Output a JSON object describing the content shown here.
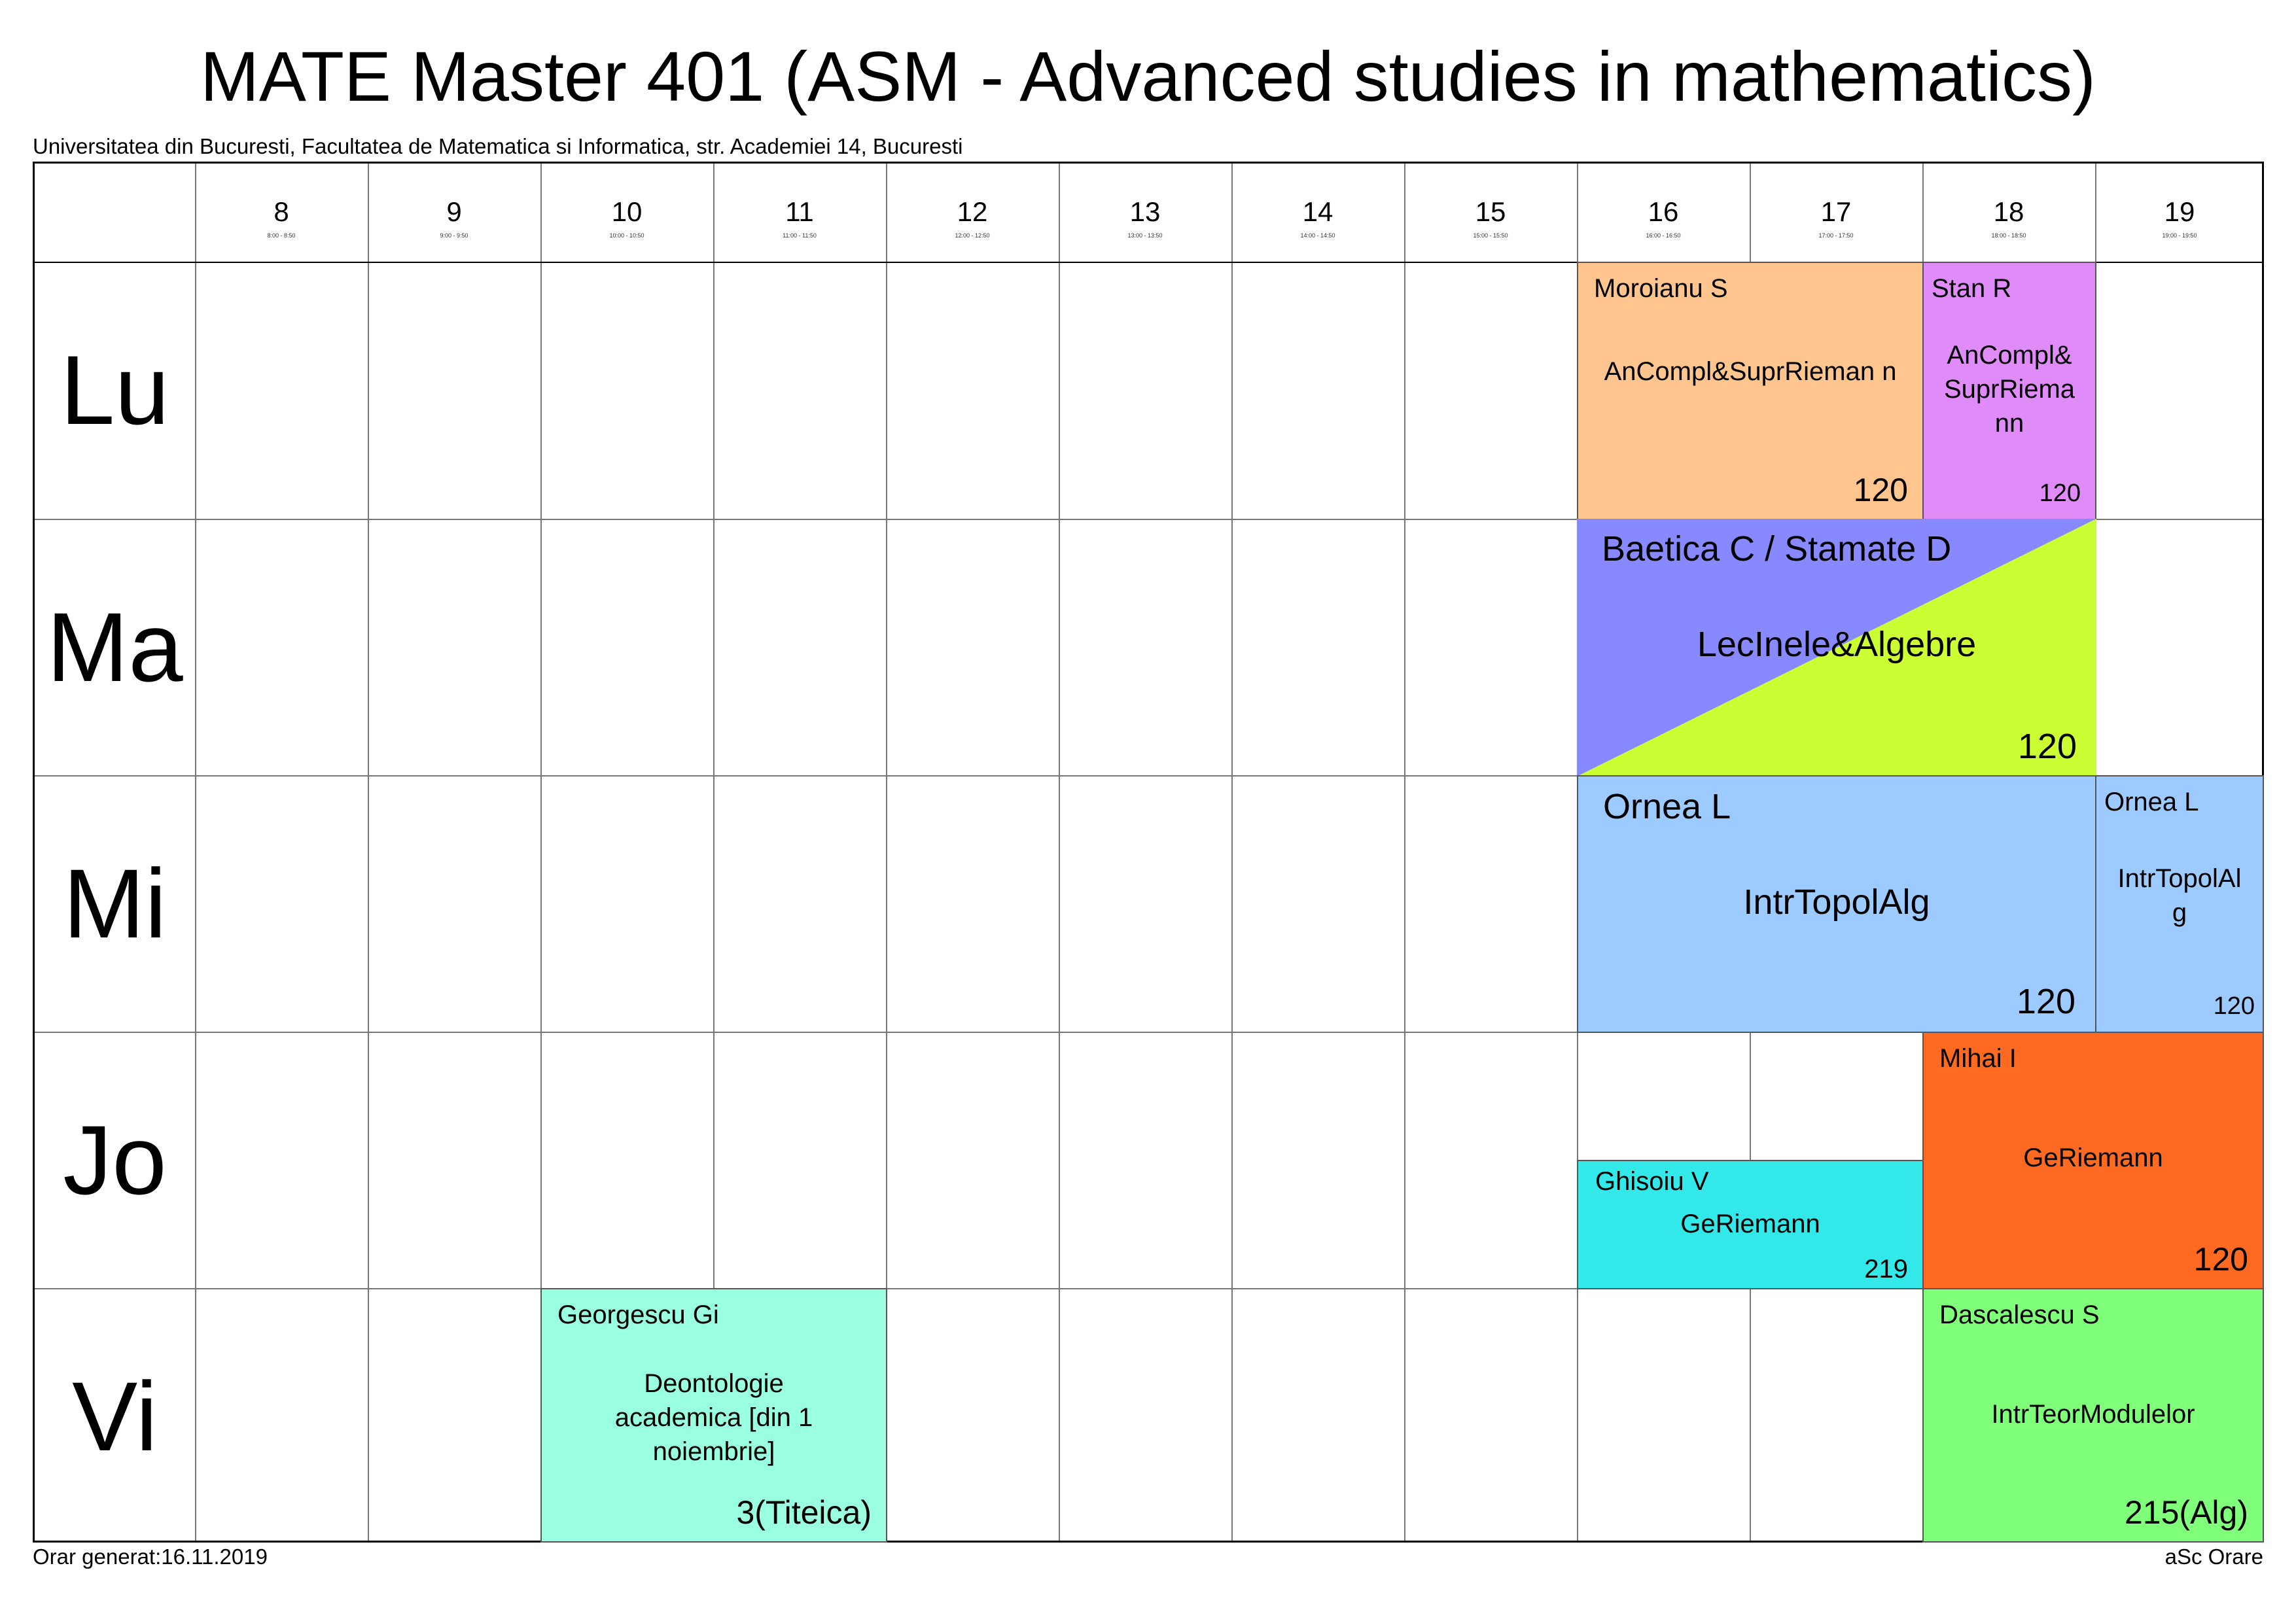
{
  "header": {
    "title": "MATE Master 401 (ASM - Advanced studies in mathematics)",
    "subtitle": "Universitatea din Bucuresti, Facultatea de Matematica si Informatica, str. Academiei 14, Bucuresti"
  },
  "hours": [
    {
      "label": "8",
      "range": "8:00 - 8:50"
    },
    {
      "label": "9",
      "range": "9:00 - 9:50"
    },
    {
      "label": "10",
      "range": "10:00 - 10:50"
    },
    {
      "label": "11",
      "range": "11:00 - 11:50"
    },
    {
      "label": "12",
      "range": "12:00 - 12:50"
    },
    {
      "label": "13",
      "range": "13:00 - 13:50"
    },
    {
      "label": "14",
      "range": "14:00 - 14:50"
    },
    {
      "label": "15",
      "range": "15:00 - 15:50"
    },
    {
      "label": "16",
      "range": "16:00 - 16:50"
    },
    {
      "label": "17",
      "range": "17:00 - 17:50"
    },
    {
      "label": "18",
      "range": "18:00 - 18:50"
    },
    {
      "label": "19",
      "range": "19:00 - 19:50"
    }
  ],
  "days": [
    "Lu",
    "Ma",
    "Mi",
    "Jo",
    "Vi"
  ],
  "slots": [
    {
      "teacher": "Moroianu S",
      "subject": "AnCompl&SuprRieman n",
      "room": "120",
      "color": "#ffc58e"
    },
    {
      "teacher": "Stan R",
      "subject": "AnCompl& SuprRiema nn",
      "room": "120",
      "color": "#e08cf8"
    },
    {
      "teacher": "Baetica C / Stamate D",
      "subject": "LecInele&Algebre",
      "room": "120",
      "color": "#8888ff",
      "color2": "#ccff33"
    },
    {
      "teacher": "Ornea L",
      "subject": "IntrTopolAlg",
      "room": "120",
      "color": "#9ecbff"
    },
    {
      "teacher": "Ornea L",
      "subject": "IntrTopolAl g",
      "room": "120",
      "color": "#9ecbff"
    },
    {
      "teacher": "Ghisoiu V",
      "subject": "GeRiemann",
      "room": "219",
      "color": "#33e8e8"
    },
    {
      "teacher": "Mihai I",
      "subject": "GeRiemann",
      "room": "120",
      "color": "#ff6a22"
    },
    {
      "teacher": "Georgescu Gi",
      "subject": "Deontologie academica [din 1 noiembrie]",
      "room": "3(Titeica)",
      "color": "#99ffe0"
    },
    {
      "teacher": "Dascalescu S",
      "subject": "IntrTeorModulelor",
      "room": "215(Alg)",
      "color": "#80ff7a"
    }
  ],
  "footer": {
    "generated": "Orar generat:16.11.2019",
    "brand": "aSc Orare"
  }
}
